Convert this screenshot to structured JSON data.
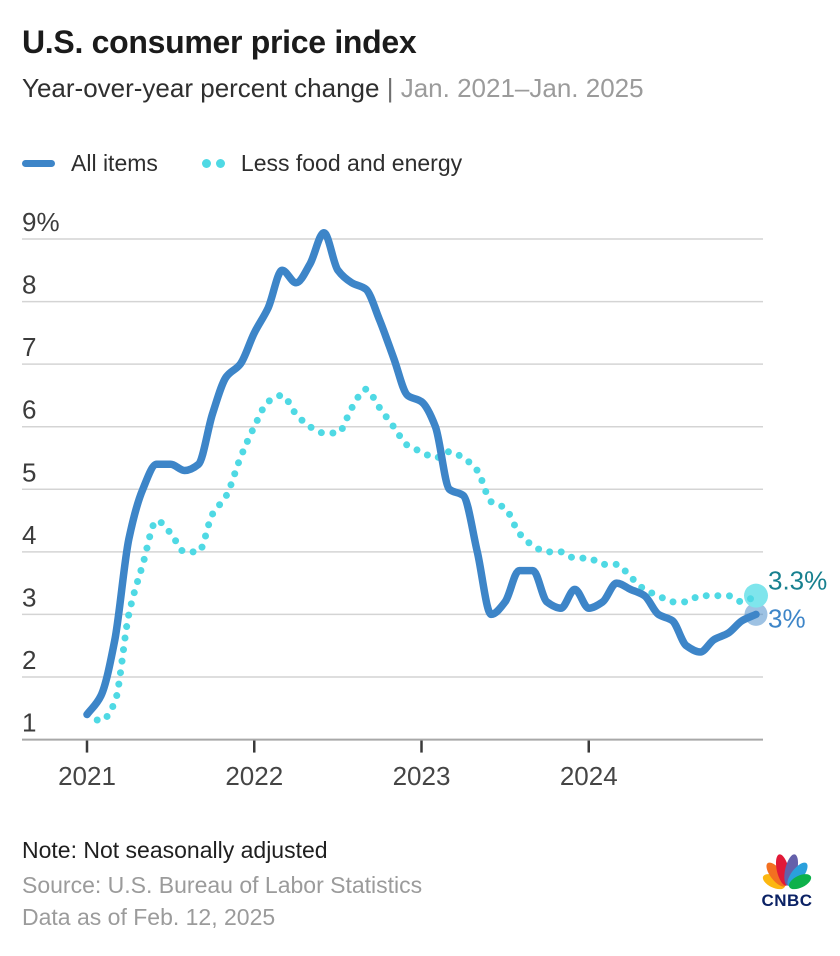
{
  "header": {
    "title": "U.S. consumer price index",
    "subtitle": "Year-over-year percent change",
    "subtitle_separator": "|",
    "subtitle_range": "Jan. 2021–Jan. 2025"
  },
  "legend": {
    "items": [
      {
        "label": "All items",
        "swatch": "solid-line",
        "color": "#3d85c8"
      },
      {
        "label": "Less food and energy",
        "swatch": "dotted-line",
        "color": "#4fd9e4"
      }
    ]
  },
  "chart_data": {
    "type": "line",
    "title": "U.S. consumer price index",
    "subtitle": "Year-over-year percent change | Jan. 2021–Jan. 2025",
    "x_unit": "month",
    "x_months": [
      "2021-01",
      "2021-02",
      "2021-03",
      "2021-04",
      "2021-05",
      "2021-06",
      "2021-07",
      "2021-08",
      "2021-09",
      "2021-10",
      "2021-11",
      "2021-12",
      "2022-01",
      "2022-02",
      "2022-03",
      "2022-04",
      "2022-05",
      "2022-06",
      "2022-07",
      "2022-08",
      "2022-09",
      "2022-10",
      "2022-11",
      "2022-12",
      "2023-01",
      "2023-02",
      "2023-03",
      "2023-04",
      "2023-05",
      "2023-06",
      "2023-07",
      "2023-08",
      "2023-09",
      "2023-10",
      "2023-11",
      "2023-12",
      "2024-01",
      "2024-02",
      "2024-03",
      "2024-04",
      "2024-05",
      "2024-06",
      "2024-07",
      "2024-08",
      "2024-09",
      "2024-10",
      "2024-11",
      "2024-12",
      "2025-01"
    ],
    "x_tick_labels": [
      "2021",
      "2022",
      "2023",
      "2024"
    ],
    "x_tick_month_index": [
      0,
      12,
      24,
      36
    ],
    "y_tick_labels": [
      "1",
      "2",
      "3",
      "4",
      "5",
      "6",
      "7",
      "8",
      "9%"
    ],
    "y_ticks": [
      1,
      2,
      3,
      4,
      5,
      6,
      7,
      8,
      9
    ],
    "ylim": [
      1,
      9
    ],
    "grid": "horizontal",
    "legend_position": "top-left",
    "series": [
      {
        "name": "All items",
        "style": "solid",
        "color": "#3d85c8",
        "end_label": "3%",
        "end_label_color": "#3d85c8",
        "end_dot_color": "#3d85c8",
        "values": [
          1.4,
          1.7,
          2.6,
          4.2,
          5.0,
          5.4,
          5.4,
          5.3,
          5.4,
          6.2,
          6.8,
          7.0,
          7.5,
          7.9,
          8.5,
          8.3,
          8.6,
          9.1,
          8.5,
          8.3,
          8.2,
          7.7,
          7.1,
          6.5,
          6.4,
          6.0,
          5.0,
          4.9,
          4.0,
          3.0,
          3.2,
          3.7,
          3.7,
          3.2,
          3.1,
          3.4,
          3.1,
          3.2,
          3.5,
          3.4,
          3.3,
          3.0,
          2.9,
          2.5,
          2.4,
          2.6,
          2.7,
          2.9,
          3.0
        ]
      },
      {
        "name": "Less food and energy",
        "style": "dotted",
        "color": "#4fd9e4",
        "end_label": "3.3%",
        "end_label_color": "#17808f",
        "end_dot_color": "#7fe5ec",
        "values": [
          1.4,
          1.3,
          1.6,
          3.0,
          3.8,
          4.5,
          4.3,
          4.0,
          4.0,
          4.6,
          4.9,
          5.5,
          6.0,
          6.4,
          6.5,
          6.2,
          6.0,
          5.9,
          5.9,
          6.3,
          6.6,
          6.3,
          6.0,
          5.7,
          5.6,
          5.5,
          5.6,
          5.5,
          5.3,
          4.8,
          4.7,
          4.3,
          4.1,
          4.0,
          4.0,
          3.9,
          3.9,
          3.8,
          3.8,
          3.6,
          3.4,
          3.3,
          3.2,
          3.2,
          3.3,
          3.3,
          3.3,
          3.2,
          3.3
        ]
      }
    ]
  },
  "footer": {
    "note": "Note: Not seasonally adjusted",
    "source": "Source: U.S. Bureau of Labor Statistics",
    "data_as_of": "Data as of Feb. 12, 2025",
    "logo_text": "CNBC"
  },
  "colors": {
    "background": "#ffffff",
    "title": "#1b1b1b",
    "subtitle": "#2f2f2f",
    "subtitle_range": "#9b9b9b",
    "gridline": "#d4d4d4",
    "axis_line": "#a8a8a8",
    "axis_text": "#3c3c3c",
    "all_items_blue": "#3d85c8",
    "core_cyan": "#4fd9e4",
    "core_end_label_teal": "#17808f",
    "logo_navy": "#0b2265",
    "peacock": [
      "#FCB711",
      "#F37021",
      "#E11937",
      "#6460AA",
      "#2AA0DC",
      "#0DB14B"
    ]
  }
}
